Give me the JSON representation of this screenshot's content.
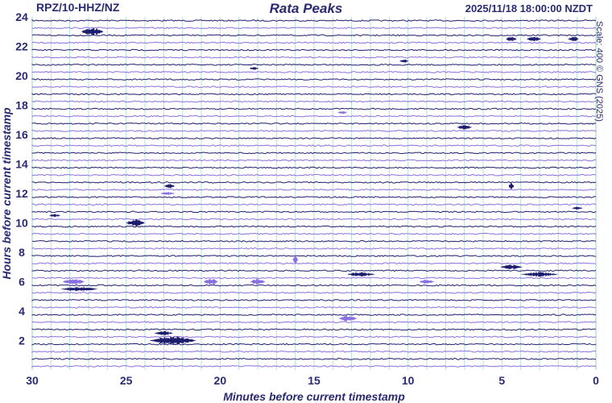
{
  "header": {
    "station": "RPZ/10-HHZ/NZ",
    "title": "Rata Peaks",
    "timestamp": "2025/11/18 18:00:00 NZDT",
    "scale_note": "Scale: 400 © GNS (2025)"
  },
  "colors": {
    "trace_dark": "#1e1e6e",
    "trace_light": "#8a6fe0",
    "grid": "#b8e0dc",
    "text": "#2a2a72"
  },
  "chart_data": {
    "type": "helicorder",
    "title": "Rata Peaks",
    "xlabel": "Minutes before current timestamp",
    "ylabel": "Hours before current timestamp",
    "x_range": [
      30,
      0
    ],
    "x_reversed": true,
    "x_ticks": [
      30,
      25,
      20,
      15,
      10,
      5,
      0
    ],
    "y_range": [
      0,
      24
    ],
    "y_ticks": [
      2,
      4,
      6,
      8,
      10,
      12,
      14,
      16,
      18,
      20,
      22,
      24
    ],
    "rows": 48,
    "row_interval_minutes": 30,
    "grid": true,
    "events": [
      {
        "hour": 23.0,
        "minute": 26.8,
        "width": 1.2,
        "amp": 5,
        "shade": "dark"
      },
      {
        "hour": 22.5,
        "minute": 4.5,
        "width": 0.6,
        "amp": 3,
        "shade": "dark"
      },
      {
        "hour": 22.5,
        "minute": 3.3,
        "width": 0.8,
        "amp": 3,
        "shade": "dark"
      },
      {
        "hour": 22.5,
        "minute": 1.2,
        "width": 0.6,
        "amp": 3,
        "shade": "dark"
      },
      {
        "hour": 21.0,
        "minute": 10.2,
        "width": 0.5,
        "amp": 2,
        "shade": "dark"
      },
      {
        "hour": 20.5,
        "minute": 18.2,
        "width": 0.5,
        "amp": 2,
        "shade": "dark"
      },
      {
        "hour": 17.5,
        "minute": 13.5,
        "width": 0.5,
        "amp": 2,
        "shade": "light"
      },
      {
        "hour": 16.5,
        "minute": 7.0,
        "width": 0.8,
        "amp": 3,
        "shade": "dark"
      },
      {
        "hour": 12.5,
        "minute": 22.7,
        "width": 0.6,
        "amp": 3,
        "shade": "dark"
      },
      {
        "hour": 12.5,
        "minute": 4.5,
        "width": 0.3,
        "amp": 4,
        "shade": "dark"
      },
      {
        "hour": 12.0,
        "minute": 22.8,
        "width": 0.8,
        "amp": 2,
        "shade": "light"
      },
      {
        "hour": 11.0,
        "minute": 1.0,
        "width": 0.6,
        "amp": 2,
        "shade": "dark"
      },
      {
        "hour": 10.5,
        "minute": 28.8,
        "width": 0.6,
        "amp": 2,
        "shade": "dark"
      },
      {
        "hour": 10.0,
        "minute": 24.5,
        "width": 1.0,
        "amp": 5,
        "shade": "dark"
      },
      {
        "hour": 7.5,
        "minute": 16.0,
        "width": 0.3,
        "amp": 6,
        "shade": "light"
      },
      {
        "hour": 7.0,
        "minute": 4.5,
        "width": 1.2,
        "amp": 3,
        "shade": "dark"
      },
      {
        "hour": 6.5,
        "minute": 12.5,
        "width": 1.5,
        "amp": 3,
        "shade": "dark"
      },
      {
        "hour": 6.5,
        "minute": 3.0,
        "width": 2.0,
        "amp": 3,
        "shade": "dark"
      },
      {
        "hour": 6.0,
        "minute": 27.8,
        "width": 1.2,
        "amp": 4,
        "shade": "light"
      },
      {
        "hour": 6.0,
        "minute": 20.5,
        "width": 0.8,
        "amp": 4,
        "shade": "light"
      },
      {
        "hour": 6.0,
        "minute": 18.0,
        "width": 0.8,
        "amp": 4,
        "shade": "light"
      },
      {
        "hour": 6.0,
        "minute": 9.0,
        "width": 0.8,
        "amp": 3,
        "shade": "light"
      },
      {
        "hour": 5.5,
        "minute": 27.5,
        "width": 2.0,
        "amp": 3,
        "shade": "dark"
      },
      {
        "hour": 3.5,
        "minute": 13.2,
        "width": 1.0,
        "amp": 4,
        "shade": "light"
      },
      {
        "hour": 2.5,
        "minute": 23.0,
        "width": 1.0,
        "amp": 3,
        "shade": "dark"
      },
      {
        "hour": 2.0,
        "minute": 22.5,
        "width": 2.5,
        "amp": 6,
        "shade": "dark"
      }
    ]
  }
}
